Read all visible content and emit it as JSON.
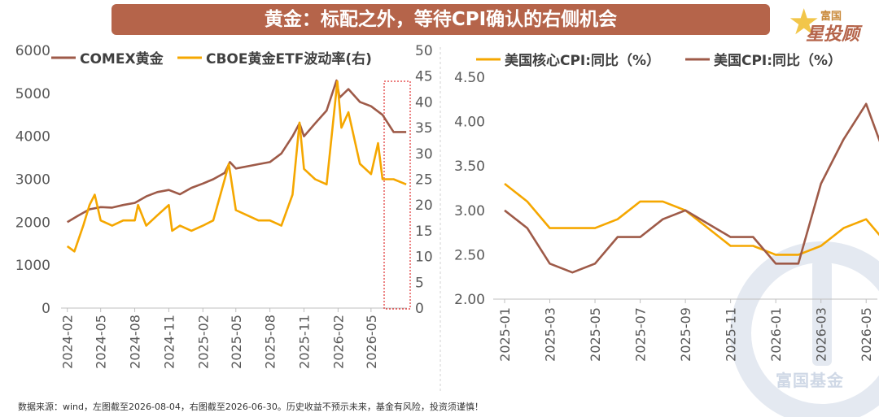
{
  "header": {
    "title": "黄金：标配之外，等待CPI确认的右侧机会"
  },
  "brand": {
    "top": "富国",
    "bottom": "星投顾"
  },
  "watermark": {
    "text": "富国基金"
  },
  "footer": {
    "note": "数据来源：wind，左图截至2026-08-04，右图截至2026-06-30。历史收益不预示未来，基金有风险，投资须谨慎！"
  },
  "colors": {
    "brown": "#9e5a48",
    "gold": "#f5a700",
    "title_bg": "#b5644a",
    "highlight": "#e03030"
  },
  "chart_data": [
    {
      "type": "line",
      "legend": [
        "COMEX黄金",
        "CBOE黄金ETF波动率(右)"
      ],
      "x_tick_labels": [
        "2024-02",
        "2024-05",
        "2024-08",
        "2024-11",
        "2025-02",
        "2025-05",
        "2025-08",
        "2025-11",
        "2026-02",
        "2026-05"
      ],
      "ylim": [
        0,
        6000
      ],
      "y2lim": [
        0,
        50
      ],
      "y_ticks": [
        0,
        1000,
        2000,
        3000,
        4000,
        5000,
        6000
      ],
      "y2_ticks": [
        0,
        5,
        10,
        15,
        20,
        25,
        30,
        35,
        40,
        45,
        50
      ],
      "annotation": "dotted red box highlighting the most recent period on the right axis",
      "series": [
        {
          "name": "COMEX黄金",
          "axis": "left",
          "color": "#9e5a48",
          "x": [
            "2024-02-01",
            "2024-03-01",
            "2024-04-01",
            "2024-05-01",
            "2024-06-01",
            "2024-07-01",
            "2024-08-01",
            "2024-09-01",
            "2024-10-01",
            "2024-11-01",
            "2024-12-01",
            "2025-01-01",
            "2025-02-01",
            "2025-03-01",
            "2025-04-01",
            "2025-04-15",
            "2025-05-01",
            "2025-06-01",
            "2025-07-01",
            "2025-08-01",
            "2025-09-01",
            "2025-10-01",
            "2025-10-20",
            "2025-11-01",
            "2025-12-01",
            "2026-01-01",
            "2026-01-28",
            "2026-02-05",
            "2026-03-01",
            "2026-04-01",
            "2026-05-01",
            "2026-06-01",
            "2026-07-01",
            "2026-08-04"
          ],
          "y": [
            2000,
            2150,
            2300,
            2350,
            2340,
            2400,
            2450,
            2600,
            2700,
            2750,
            2650,
            2800,
            2900,
            3000,
            3150,
            3400,
            3250,
            3300,
            3350,
            3400,
            3600,
            4000,
            4300,
            4000,
            4300,
            4600,
            5300,
            4900,
            5100,
            4800,
            4700,
            4500,
            4100,
            4100
          ]
        },
        {
          "name": "CBOE黄金ETF波动率(右)",
          "axis": "right",
          "color": "#f5a700",
          "x": [
            "2024-02-01",
            "2024-02-20",
            "2024-03-15",
            "2024-04-01",
            "2024-04-15",
            "2024-05-01",
            "2024-06-01",
            "2024-07-01",
            "2024-08-01",
            "2024-08-10",
            "2024-09-01",
            "2024-10-01",
            "2024-11-01",
            "2024-11-10",
            "2024-12-01",
            "2025-01-01",
            "2025-02-01",
            "2025-03-01",
            "2025-04-01",
            "2025-04-12",
            "2025-05-01",
            "2025-06-01",
            "2025-07-01",
            "2025-08-01",
            "2025-09-01",
            "2025-10-01",
            "2025-10-20",
            "2025-11-01",
            "2025-12-01",
            "2026-01-01",
            "2026-01-30",
            "2026-02-10",
            "2026-03-01",
            "2026-04-01",
            "2026-05-01",
            "2026-05-20",
            "2026-06-01",
            "2026-07-01",
            "2026-08-04"
          ],
          "y": [
            12,
            11,
            16,
            20,
            22,
            17,
            16,
            17,
            17,
            20,
            16,
            18,
            20,
            15,
            16,
            15,
            16,
            17,
            25,
            28,
            19,
            18,
            17,
            17,
            16,
            22,
            36,
            27,
            25,
            24,
            44,
            35,
            38,
            28,
            26,
            32,
            25,
            25,
            24
          ]
        }
      ]
    },
    {
      "type": "line",
      "legend": [
        "美国核心CPI:同比（%）",
        "美国CPI:同比（%）"
      ],
      "x_tick_labels": [
        "2025-01",
        "2025-03",
        "2025-05",
        "2025-07",
        "2025-09",
        "2025-11",
        "2026-01",
        "2026-03",
        "2026-05"
      ],
      "ylim": [
        2.0,
        4.5
      ],
      "y_ticks": [
        "2.00",
        "2.50",
        "3.00",
        "3.50",
        "4.00",
        "4.50"
      ],
      "series": [
        {
          "name": "美国核心CPI:同比（%）",
          "color": "#f5a700",
          "x": [
            "2025-01",
            "2025-02",
            "2025-03",
            "2025-04",
            "2025-05",
            "2025-06",
            "2025-07",
            "2025-08",
            "2025-09",
            "2025-10",
            "2025-11",
            "2025-12",
            "2026-01",
            "2026-02",
            "2026-03",
            "2026-04",
            "2026-05",
            "2026-06"
          ],
          "y": [
            3.3,
            3.1,
            2.8,
            2.8,
            2.8,
            2.9,
            3.1,
            3.1,
            3.0,
            2.8,
            2.6,
            2.6,
            2.5,
            2.5,
            2.6,
            2.8,
            2.9,
            2.6
          ]
        },
        {
          "name": "美国CPI:同比（%）",
          "color": "#9e5a48",
          "x": [
            "2025-01",
            "2025-02",
            "2025-03",
            "2025-04",
            "2025-05",
            "2025-06",
            "2025-07",
            "2025-08",
            "2025-09",
            "2025-10",
            "2025-11",
            "2025-12",
            "2026-01",
            "2026-02",
            "2026-03",
            "2026-04",
            "2026-05",
            "2026-06"
          ],
          "y": [
            3.0,
            2.8,
            2.4,
            2.3,
            2.4,
            2.7,
            2.7,
            2.9,
            3.0,
            2.85,
            2.7,
            2.7,
            2.4,
            2.4,
            3.3,
            3.8,
            4.2,
            3.5
          ]
        }
      ]
    }
  ]
}
